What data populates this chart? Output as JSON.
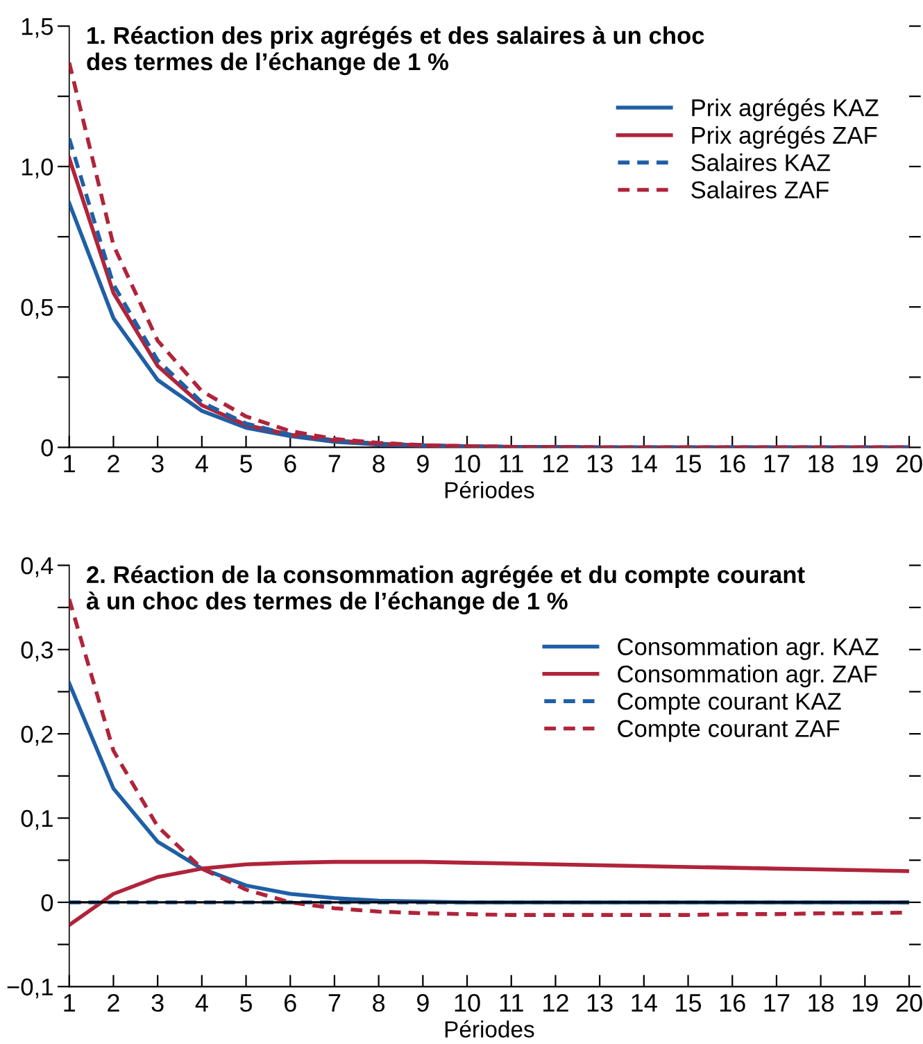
{
  "chart_data": [
    {
      "type": "line",
      "title": "1. Réaction des prix agrégés et des salaires à un choc\ndes termes de l’échange de 1 %",
      "xlabel": "Périodes",
      "x": [
        1,
        2,
        3,
        4,
        5,
        6,
        7,
        8,
        9,
        10,
        11,
        12,
        13,
        14,
        15,
        16,
        17,
        18,
        19,
        20
      ],
      "xlim": [
        1,
        20
      ],
      "xticks": [
        1,
        2,
        3,
        4,
        5,
        6,
        7,
        8,
        9,
        10,
        11,
        12,
        13,
        14,
        15,
        16,
        17,
        18,
        19,
        20
      ],
      "ylim": [
        0,
        1.5
      ],
      "yticks": [
        0,
        {
          "value": 0.25,
          "label": null
        },
        {
          "value": 0.5,
          "label": "0,5"
        },
        {
          "value": 0.75,
          "label": null
        },
        {
          "value": 1.0,
          "label": "1,0"
        },
        {
          "value": 1.25,
          "label": null
        },
        {
          "value": 1.5,
          "label": "1,5"
        }
      ],
      "grid": false,
      "legend": "top right",
      "marker": "none",
      "series": [
        {
          "name": "Prix agrégés KAZ",
          "color": "#1f5fa6",
          "line_style": "solid",
          "values": [
            0.87,
            0.46,
            0.24,
            0.13,
            0.07,
            0.04,
            0.02,
            0.01,
            0.005,
            0.003,
            0.002,
            0.001,
            0,
            0,
            0,
            0,
            0,
            0,
            0,
            0
          ]
        },
        {
          "name": "Prix agrégés ZAF",
          "color": "#b0243a",
          "line_style": "solid",
          "values": [
            1.03,
            0.55,
            0.29,
            0.15,
            0.08,
            0.045,
            0.025,
            0.013,
            0.007,
            0.004,
            0.002,
            0.001,
            0,
            0,
            0,
            0,
            0,
            0,
            0,
            0
          ]
        },
        {
          "name": "Salaires KAZ",
          "color": "#1f5fa6",
          "line_style": "dashed",
          "values": [
            1.1,
            0.58,
            0.31,
            0.16,
            0.085,
            0.045,
            0.025,
            0.013,
            0.007,
            0.004,
            0.002,
            0.001,
            0,
            0,
            0,
            0,
            0,
            0,
            0,
            0
          ]
        },
        {
          "name": "Salaires ZAF",
          "color": "#b0243a",
          "line_style": "dashed",
          "values": [
            1.37,
            0.72,
            0.38,
            0.2,
            0.11,
            0.058,
            0.03,
            0.016,
            0.008,
            0.004,
            0.002,
            0.001,
            0,
            0,
            0,
            0,
            0,
            0,
            0,
            0
          ]
        }
      ]
    },
    {
      "type": "line",
      "title": "2. Réaction de la consommation agrégée et du compte courant\nà un choc des termes de l’échange de 1 %",
      "xlabel": "Périodes",
      "x": [
        1,
        2,
        3,
        4,
        5,
        6,
        7,
        8,
        9,
        10,
        11,
        12,
        13,
        14,
        15,
        16,
        17,
        18,
        19,
        20
      ],
      "xlim": [
        1,
        20
      ],
      "xticks": [
        1,
        2,
        3,
        4,
        5,
        6,
        7,
        8,
        9,
        10,
        11,
        12,
        13,
        14,
        15,
        16,
        17,
        18,
        19,
        20
      ],
      "ylim": [
        -0.1,
        0.4
      ],
      "yticks": [
        {
          "value": -0.1,
          "label": "−0,1"
        },
        {
          "value": -0.05,
          "label": null
        },
        0,
        {
          "value": 0.05,
          "label": null
        },
        {
          "value": 0.1,
          "label": "0,1"
        },
        {
          "value": 0.15,
          "label": null
        },
        {
          "value": 0.2,
          "label": "0,2"
        },
        {
          "value": 0.25,
          "label": null
        },
        {
          "value": 0.3,
          "label": "0,3"
        },
        {
          "value": 0.35,
          "label": null
        },
        {
          "value": 0.4,
          "label": "0,4"
        }
      ],
      "grid": false,
      "legend": "top right",
      "marker": "none",
      "ref_lines": [
        {
          "axis": "y",
          "value": 0,
          "label": null,
          "color": "#000000",
          "line_style": "solid"
        }
      ],
      "series": [
        {
          "name": "Consommation agr. KAZ",
          "color": "#1f5fa6",
          "line_style": "solid",
          "values": [
            0.26,
            0.135,
            0.072,
            0.04,
            0.02,
            0.01,
            0.005,
            0.002,
            0.001,
            0,
            0,
            0,
            0,
            0,
            0,
            0,
            0,
            0,
            0,
            0
          ]
        },
        {
          "name": "Consommation agr. ZAF",
          "color": "#b0243a",
          "line_style": "solid",
          "values": [
            -0.027,
            0.01,
            0.03,
            0.04,
            0.045,
            0.047,
            0.048,
            0.048,
            0.048,
            0.047,
            0.046,
            0.045,
            0.044,
            0.043,
            0.042,
            0.041,
            0.04,
            0.039,
            0.038,
            0.037
          ]
        },
        {
          "name": "Compte courant KAZ",
          "color": "#1f5fa6",
          "line_style": "dashed",
          "values": [
            0,
            0,
            0,
            0,
            0,
            0,
            0,
            0,
            0,
            0,
            0,
            0,
            0,
            0,
            0,
            0,
            0,
            0,
            0,
            0
          ]
        },
        {
          "name": "Compte courant ZAF",
          "color": "#b0243a",
          "line_style": "dashed",
          "values": [
            0.36,
            0.18,
            0.09,
            0.04,
            0.015,
            0,
            -0.007,
            -0.011,
            -0.013,
            -0.014,
            -0.015,
            -0.015,
            -0.015,
            -0.015,
            -0.015,
            -0.014,
            -0.014,
            -0.013,
            -0.013,
            -0.012
          ]
        }
      ]
    }
  ]
}
